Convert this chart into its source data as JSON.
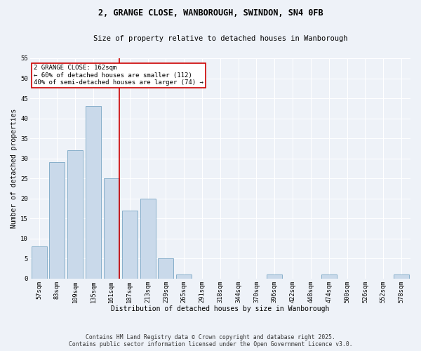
{
  "title_line1": "2, GRANGE CLOSE, WANBOROUGH, SWINDON, SN4 0FB",
  "title_line2": "Size of property relative to detached houses in Wanborough",
  "xlabel": "Distribution of detached houses by size in Wanborough",
  "ylabel": "Number of detached properties",
  "categories": [
    "57sqm",
    "83sqm",
    "109sqm",
    "135sqm",
    "161sqm",
    "187sqm",
    "213sqm",
    "239sqm",
    "265sqm",
    "291sqm",
    "318sqm",
    "344sqm",
    "370sqm",
    "396sqm",
    "422sqm",
    "448sqm",
    "474sqm",
    "500sqm",
    "526sqm",
    "552sqm",
    "578sqm"
  ],
  "values": [
    8,
    29,
    32,
    43,
    25,
    17,
    20,
    5,
    1,
    0,
    0,
    0,
    0,
    1,
    0,
    0,
    1,
    0,
    0,
    0,
    1
  ],
  "bar_color": "#c9d9ea",
  "bar_edge_color": "#6699bb",
  "background_color": "#eef2f8",
  "grid_color": "#ffffff",
  "vline_x_idx": 4,
  "vline_color": "#cc0000",
  "annotation_text": "2 GRANGE CLOSE: 162sqm\n← 60% of detached houses are smaller (112)\n40% of semi-detached houses are larger (74) →",
  "annotation_box_color": "#ffffff",
  "annotation_box_edge_color": "#cc0000",
  "footer_line1": "Contains HM Land Registry data © Crown copyright and database right 2025.",
  "footer_line2": "Contains public sector information licensed under the Open Government Licence v3.0.",
  "ylim": [
    0,
    55
  ],
  "yticks": [
    0,
    5,
    10,
    15,
    20,
    25,
    30,
    35,
    40,
    45,
    50,
    55
  ]
}
